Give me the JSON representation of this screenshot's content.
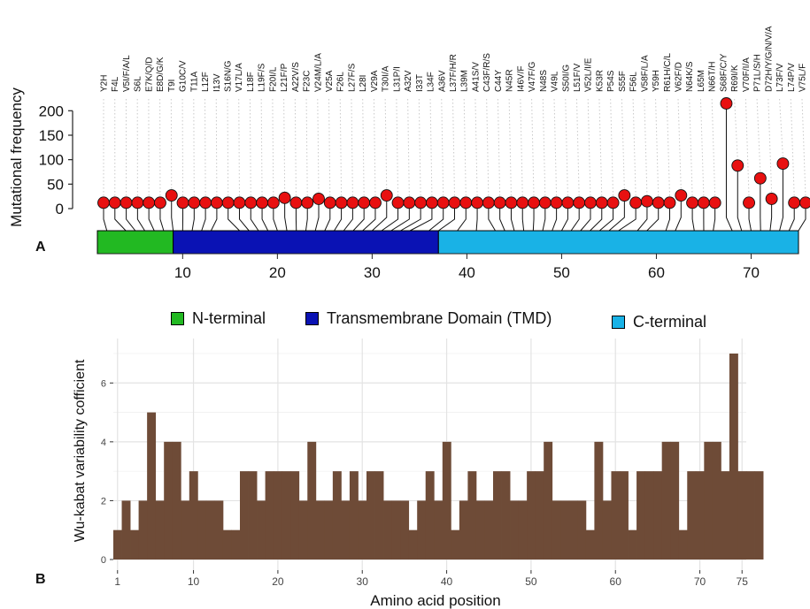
{
  "chart_data": [
    {
      "type": "lollipop",
      "panel_label": "A",
      "ylabel": "Mutational frequency",
      "ylim": [
        0,
        215
      ],
      "yticks": [
        0,
        50,
        100,
        150,
        200
      ],
      "xticks": [
        10,
        20,
        30,
        40,
        50,
        60,
        70
      ],
      "domain_axis": [
        1,
        75
      ],
      "domains": [
        {
          "name": "N-terminal",
          "start": 1,
          "end": 9,
          "color": "#22b922"
        },
        {
          "name": "Transmembrane Domain (TMD)",
          "start": 9,
          "end": 37,
          "color": "#0a12b4"
        },
        {
          "name": "C-terminal",
          "start": 37,
          "end": 75,
          "color": "#19b2e6"
        }
      ],
      "point_color": "#e81010",
      "mutations": [
        {
          "label": "Y2H",
          "position": 2,
          "frequency": 12
        },
        {
          "label": "F4L",
          "position": 4,
          "frequency": 12
        },
        {
          "label": "V5I/F/A/L",
          "position": 5,
          "frequency": 12
        },
        {
          "label": "S6L",
          "position": 6,
          "frequency": 12
        },
        {
          "label": "E7K/Q/D",
          "position": 7,
          "frequency": 12
        },
        {
          "label": "E8D/G/K",
          "position": 8,
          "frequency": 12
        },
        {
          "label": "T9I",
          "position": 9,
          "frequency": 27
        },
        {
          "label": "G10C/V",
          "position": 10,
          "frequency": 12
        },
        {
          "label": "T11A",
          "position": 11,
          "frequency": 12
        },
        {
          "label": "L12F",
          "position": 12,
          "frequency": 12
        },
        {
          "label": "I13V",
          "position": 13,
          "frequency": 12
        },
        {
          "label": "S16N/G",
          "position": 16,
          "frequency": 12
        },
        {
          "label": "V17L/A",
          "position": 17,
          "frequency": 12
        },
        {
          "label": "L18F",
          "position": 18,
          "frequency": 12
        },
        {
          "label": "L19F/S",
          "position": 19,
          "frequency": 12
        },
        {
          "label": "F20I/L",
          "position": 20,
          "frequency": 12
        },
        {
          "label": "L21F/P",
          "position": 21,
          "frequency": 22
        },
        {
          "label": "A22V/S",
          "position": 22,
          "frequency": 12
        },
        {
          "label": "F23C",
          "position": 23,
          "frequency": 12
        },
        {
          "label": "V24M/L/A",
          "position": 24,
          "frequency": 20
        },
        {
          "label": "V25A",
          "position": 25,
          "frequency": 12
        },
        {
          "label": "F26L",
          "position": 26,
          "frequency": 12
        },
        {
          "label": "L27F/S",
          "position": 27,
          "frequency": 12
        },
        {
          "label": "L28I",
          "position": 28,
          "frequency": 12
        },
        {
          "label": "V29A",
          "position": 29,
          "frequency": 12
        },
        {
          "label": "T30I/A",
          "position": 30,
          "frequency": 27
        },
        {
          "label": "L31P/I",
          "position": 31,
          "frequency": 12
        },
        {
          "label": "A32V",
          "position": 32,
          "frequency": 12
        },
        {
          "label": "I33T",
          "position": 33,
          "frequency": 12
        },
        {
          "label": "L34F",
          "position": 34,
          "frequency": 12
        },
        {
          "label": "A36V",
          "position": 36,
          "frequency": 12
        },
        {
          "label": "L37F/H/R",
          "position": 37,
          "frequency": 12
        },
        {
          "label": "L39M",
          "position": 39,
          "frequency": 12
        },
        {
          "label": "A41S/V",
          "position": 41,
          "frequency": 12
        },
        {
          "label": "C43F/R/S",
          "position": 43,
          "frequency": 12
        },
        {
          "label": "C44Y",
          "position": 44,
          "frequency": 12
        },
        {
          "label": "N45R",
          "position": 45,
          "frequency": 12
        },
        {
          "label": "I46V/F",
          "position": 46,
          "frequency": 12
        },
        {
          "label": "V47F/G",
          "position": 47,
          "frequency": 12
        },
        {
          "label": "N48S",
          "position": 48,
          "frequency": 12
        },
        {
          "label": "V49L",
          "position": 49,
          "frequency": 12
        },
        {
          "label": "S50I/G",
          "position": 50,
          "frequency": 12
        },
        {
          "label": "L51F/V",
          "position": 51,
          "frequency": 12
        },
        {
          "label": "V52L/I/E",
          "position": 52,
          "frequency": 12
        },
        {
          "label": "K53R",
          "position": 53,
          "frequency": 12
        },
        {
          "label": "P54S",
          "position": 54,
          "frequency": 12
        },
        {
          "label": "S55F",
          "position": 55,
          "frequency": 27
        },
        {
          "label": "F56L",
          "position": 56,
          "frequency": 12
        },
        {
          "label": "V58F/L/A",
          "position": 58,
          "frequency": 15
        },
        {
          "label": "Y59H",
          "position": 59,
          "frequency": 12
        },
        {
          "label": "R61H/C/L",
          "position": 61,
          "frequency": 12
        },
        {
          "label": "V62F/D",
          "position": 62,
          "frequency": 27
        },
        {
          "label": "N64K/S",
          "position": 64,
          "frequency": 12
        },
        {
          "label": "L65M",
          "position": 65,
          "frequency": 12
        },
        {
          "label": "N66T/H",
          "position": 66,
          "frequency": 12
        },
        {
          "label": "S68F/C/Y",
          "position": 68,
          "frequency": 215
        },
        {
          "label": "R69I/K",
          "position": 69,
          "frequency": 88
        },
        {
          "label": "V70F/I/A",
          "position": 70,
          "frequency": 12
        },
        {
          "label": "P71L/S/H",
          "position": 71,
          "frequency": 62
        },
        {
          "label": "D72H/Y/G/N/V/A",
          "position": 72,
          "frequency": 20
        },
        {
          "label": "L73F/V",
          "position": 73,
          "frequency": 92
        },
        {
          "label": "L74P/V",
          "position": 74,
          "frequency": 12
        },
        {
          "label": "V75L/F",
          "position": 75,
          "frequency": 12
        }
      ]
    },
    {
      "type": "bar",
      "panel_label": "B",
      "xlabel": "Amino acid position",
      "ylabel": "Wu-kabat variability cofficient",
      "xlim": [
        0.5,
        75.5
      ],
      "xticks": [
        1,
        10,
        20,
        30,
        40,
        50,
        60,
        70,
        75
      ],
      "ylim": [
        0,
        7.2
      ],
      "yticks": [
        0,
        2,
        4,
        6
      ],
      "grid": true,
      "bar_color": "#6e4b37",
      "positions_start": 1,
      "values": [
        1,
        2,
        1,
        2,
        5,
        2,
        4,
        4,
        2,
        3,
        2,
        2,
        2,
        1,
        1,
        3,
        3,
        2,
        3,
        3,
        3,
        3,
        2,
        4,
        2,
        2,
        3,
        2,
        3,
        2,
        3,
        3,
        2,
        2,
        2,
        1,
        2,
        3,
        2,
        4,
        1,
        2,
        3,
        2,
        2,
        3,
        3,
        2,
        2,
        3,
        3,
        4,
        2,
        2,
        2,
        2,
        1,
        4,
        2,
        3,
        3,
        1,
        3,
        3,
        3,
        4,
        4,
        1,
        3,
        3,
        4,
        4,
        3,
        7,
        3,
        3,
        3
      ]
    }
  ]
}
